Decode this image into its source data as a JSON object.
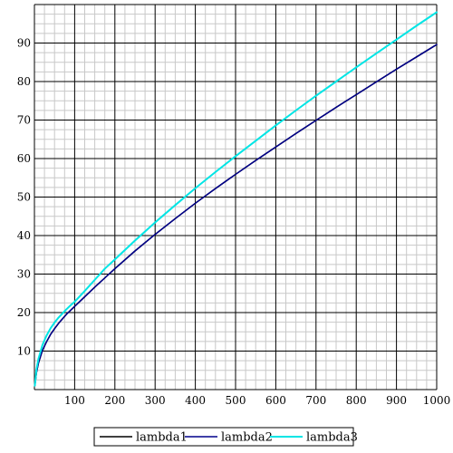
{
  "chart_data": {
    "type": "line",
    "title": "",
    "xlabel": "",
    "ylabel": "",
    "xlim": [
      0,
      1000
    ],
    "ylim": [
      0,
      100
    ],
    "x_ticks": [
      100,
      200,
      300,
      400,
      500,
      600,
      700,
      800,
      900,
      1000
    ],
    "y_ticks": [
      10,
      20,
      30,
      40,
      50,
      60,
      70,
      80,
      90
    ],
    "x_tick_labels": [
      "100",
      "200",
      "300",
      "400",
      "500",
      "600",
      "700",
      "800",
      "900",
      "1000"
    ],
    "y_tick_labels": [
      "10",
      "20",
      "30",
      "40",
      "50",
      "60",
      "70",
      "80",
      "90"
    ],
    "grid": true,
    "major_grid_color": "#000000",
    "minor_grid_color": "#c8c8c8",
    "legend_position": "bottom-center",
    "x": [
      1,
      5,
      10,
      20,
      30,
      40,
      50,
      60,
      70,
      80,
      90,
      100,
      125,
      150,
      175,
      200,
      250,
      300,
      350,
      400,
      450,
      500,
      550,
      600,
      650,
      700,
      750,
      800,
      850,
      900,
      950,
      1000
    ],
    "series": [
      {
        "name": "lambda1",
        "color": "#000000",
        "values": [
          1.0,
          4.4,
          6.9,
          10.2,
          12.4,
          14.3,
          15.8,
          17.2,
          18.4,
          19.6,
          20.6,
          21.6,
          24.1,
          26.6,
          29.0,
          31.4,
          36.0,
          40.3,
          44.4,
          48.4,
          52.2,
          55.9,
          59.5,
          63.0,
          66.5,
          69.9,
          73.3,
          76.6,
          79.9,
          83.2,
          86.4,
          89.6
        ]
      },
      {
        "name": "lambda2",
        "color": "#00008b",
        "values": [
          1.0,
          4.4,
          6.9,
          10.2,
          12.4,
          14.3,
          15.8,
          17.2,
          18.4,
          19.6,
          20.6,
          21.6,
          24.1,
          26.6,
          29.0,
          31.4,
          36.0,
          40.3,
          44.4,
          48.4,
          52.2,
          55.9,
          59.5,
          63.0,
          66.5,
          69.9,
          73.3,
          76.6,
          79.9,
          83.2,
          86.4,
          89.6
        ]
      },
      {
        "name": "lambda3",
        "color": "#00e5e5",
        "values": [
          1.0,
          5.2,
          8.0,
          11.6,
          14.0,
          15.9,
          17.4,
          18.7,
          19.8,
          20.9,
          21.9,
          22.8,
          25.6,
          28.5,
          31.4,
          33.8,
          38.7,
          43.4,
          47.9,
          52.3,
          56.5,
          60.6,
          64.6,
          68.6,
          72.5,
          76.3,
          80.0,
          83.7,
          87.3,
          90.9,
          94.5,
          98.0
        ]
      }
    ]
  }
}
